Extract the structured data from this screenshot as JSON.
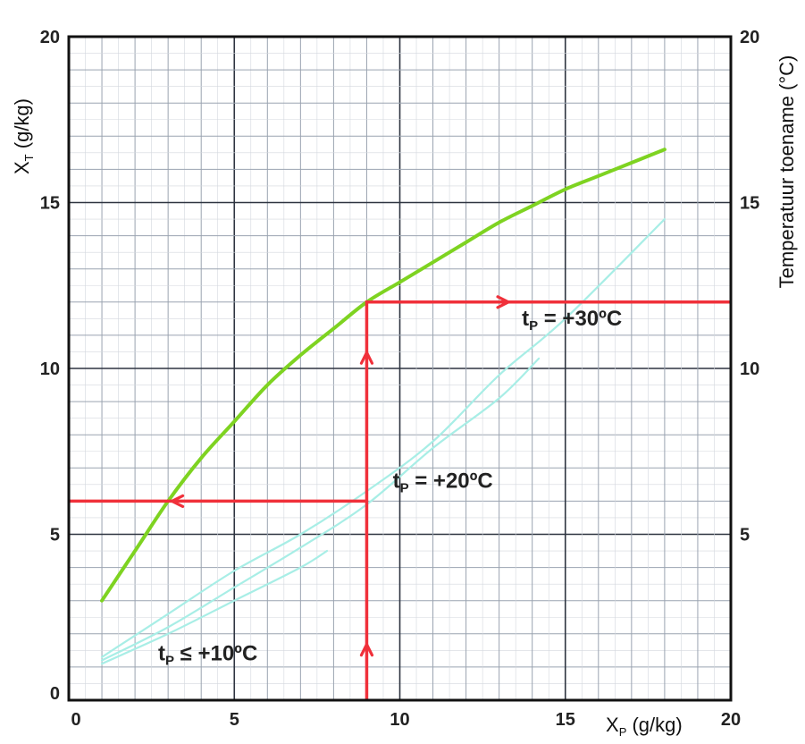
{
  "chart_data": {
    "type": "line",
    "xlabel": "X",
    "xlabel_sub": "P",
    "xlabel_unit": " (g/kg)",
    "ylabel": "X",
    "ylabel_sub": "T",
    "ylabel_unit": " (g/kg)",
    "y2label": "Temperatuur toename (°C)",
    "xlim": [
      0,
      20
    ],
    "ylim": [
      0,
      20
    ],
    "y2lim": [
      0,
      20
    ],
    "x_ticks": [
      "0",
      "5",
      "10",
      "15",
      "20"
    ],
    "y_ticks": [
      "0",
      "5",
      "10",
      "15",
      "20"
    ],
    "y2_ticks": [
      "5",
      "10",
      "15",
      "20"
    ],
    "grid": true,
    "colors": {
      "green": "#7ed321",
      "cyan": "#a8eee6",
      "red": "#f0303a",
      "minor_grid": "#9aa3b0",
      "major_grid": "#2e3440"
    },
    "series": [
      {
        "color": "green",
        "x": [
          1,
          2,
          3,
          4,
          5,
          6,
          7,
          8,
          9,
          10,
          11,
          12,
          13,
          14,
          15,
          16,
          17,
          18
        ],
        "y": [
          3.0,
          4.5,
          6.0,
          7.3,
          8.4,
          9.5,
          10.4,
          11.2,
          12.0,
          12.6,
          13.2,
          13.8,
          14.4,
          14.9,
          15.4,
          15.8,
          16.2,
          16.6
        ]
      },
      {
        "color": "cyan",
        "x": [
          1,
          3,
          5,
          7,
          9,
          11,
          13,
          15,
          18
        ],
        "y": [
          1.3,
          2.6,
          3.9,
          5.0,
          6.3,
          7.8,
          9.8,
          11.5,
          14.5
        ]
      },
      {
        "color": "cyan",
        "x": [
          1,
          3,
          5,
          7,
          9,
          11,
          13,
          14.2
        ],
        "y": [
          1.2,
          2.2,
          3.4,
          4.6,
          5.9,
          7.6,
          9.1,
          10.3
        ]
      },
      {
        "color": "cyan",
        "x": [
          1,
          3,
          5,
          7,
          7.8
        ],
        "y": [
          1.1,
          2.0,
          3.0,
          4.0,
          4.5
        ]
      }
    ],
    "annotations": [
      {
        "text_main": "t",
        "text_sub": "P",
        "text_rest": " = +30ºC",
        "x": 15.2,
        "y": 11.3
      },
      {
        "text_main": "t",
        "text_sub": "P",
        "text_rest": " = +20ºC",
        "x": 11.3,
        "y": 6.4
      },
      {
        "text_main": "t",
        "text_sub": "P",
        "text_rest": " ≤ +10ºC",
        "x": 4.2,
        "y": 1.2
      }
    ],
    "reference_lines": [
      {
        "points": [
          [
            9,
            0
          ],
          [
            9,
            12
          ],
          [
            20,
            12
          ]
        ],
        "arrows": [
          [
            9,
            1.6,
            "up"
          ],
          [
            9,
            10.4,
            "up"
          ],
          [
            13.2,
            12,
            "right"
          ]
        ]
      },
      {
        "points": [
          [
            0,
            6
          ],
          [
            9,
            6
          ]
        ],
        "arrows": [
          [
            3.2,
            6,
            "left"
          ]
        ]
      }
    ]
  }
}
